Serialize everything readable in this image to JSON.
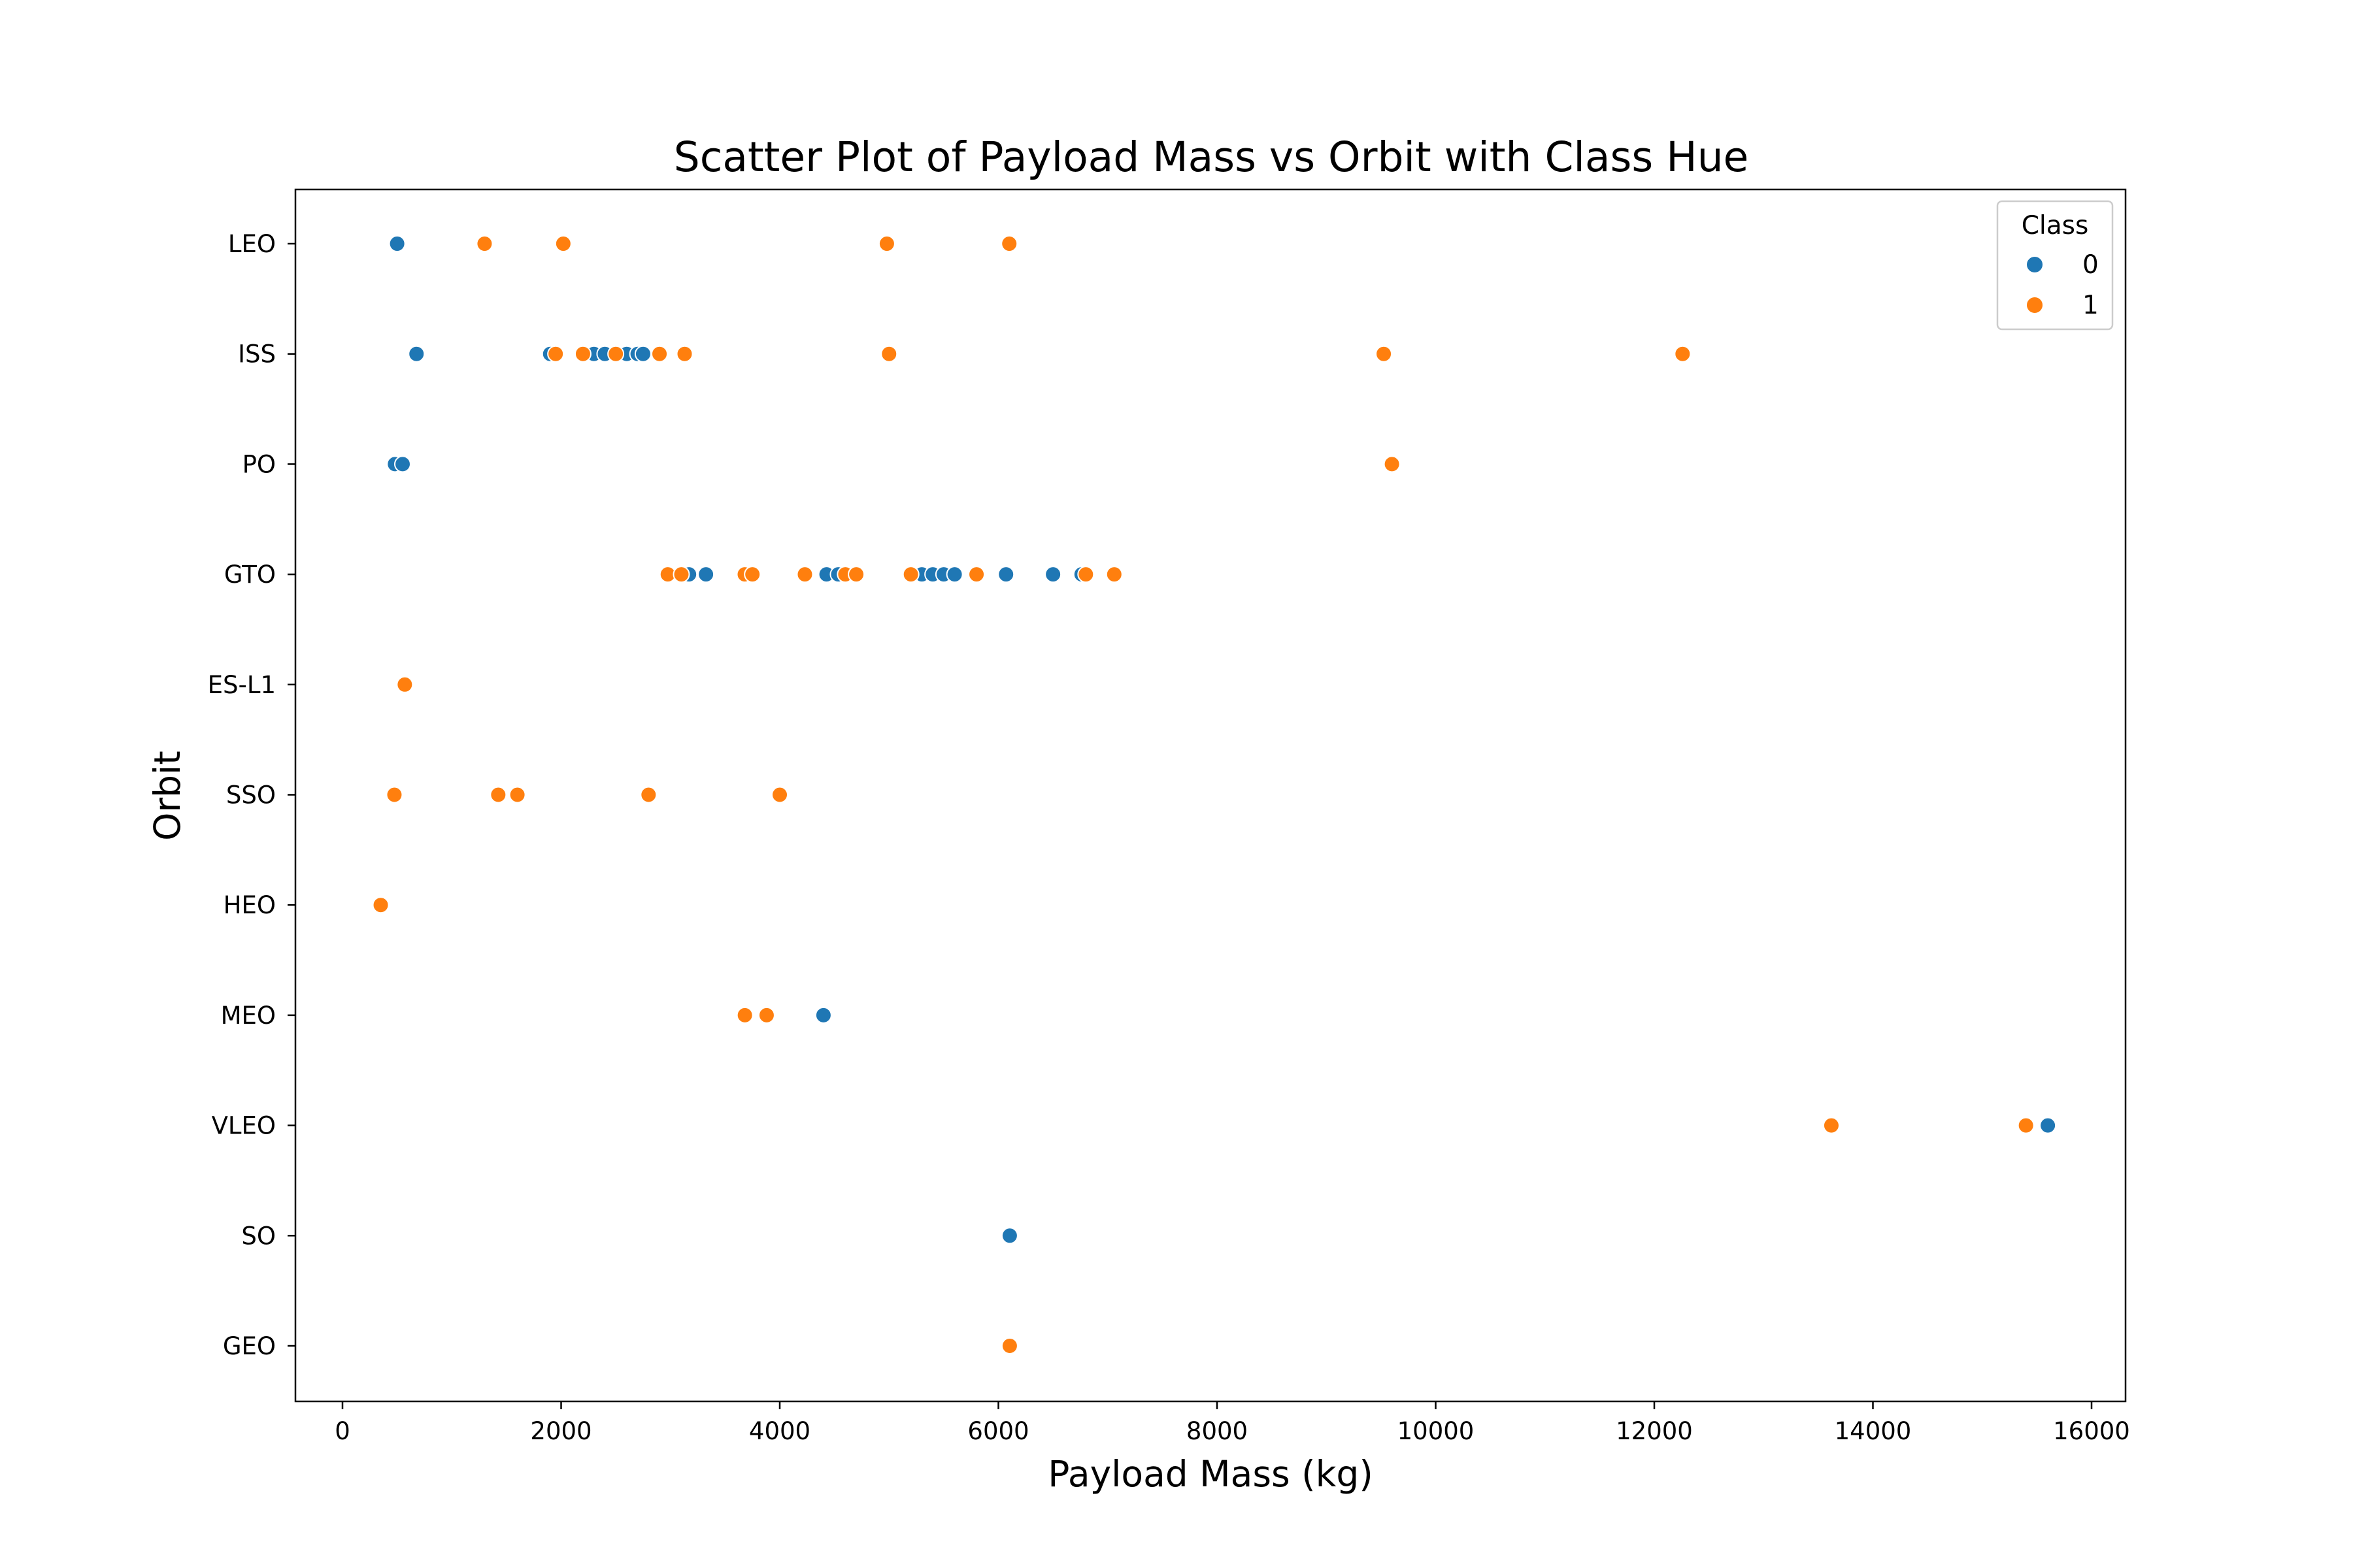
{
  "chart_data": {
    "type": "scatter",
    "title": "Scatter Plot of Payload Mass vs Orbit with Class Hue",
    "xlabel": "Payload Mass (kg)",
    "ylabel": "Orbit",
    "xlim": [
      -500,
      16350
    ],
    "xticks": [
      0,
      2000,
      4000,
      6000,
      8000,
      10000,
      12000,
      14000,
      16000
    ],
    "xtick_labels": [
      "0",
      "2000",
      "4000",
      "6000",
      "8000",
      "10000",
      "12000",
      "14000",
      "16000"
    ],
    "categories": [
      "LEO",
      "ISS",
      "PO",
      "GTO",
      "ES-L1",
      "SSO",
      "HEO",
      "MEO",
      "VLEO",
      "SO",
      "GEO"
    ],
    "grid": false,
    "legend": {
      "title": "Class",
      "placement": "top-right"
    },
    "series": [
      {
        "name": "0",
        "color": "#1f77b4",
        "points": [
          {
            "x": 500,
            "y": "LEO"
          },
          {
            "x": 677,
            "y": "ISS"
          },
          {
            "x": 1900,
            "y": "ISS"
          },
          {
            "x": 2300,
            "y": "ISS"
          },
          {
            "x": 2400,
            "y": "ISS"
          },
          {
            "x": 2600,
            "y": "ISS"
          },
          {
            "x": 2700,
            "y": "ISS"
          },
          {
            "x": 2750,
            "y": "ISS"
          },
          {
            "x": 480,
            "y": "PO"
          },
          {
            "x": 550,
            "y": "PO"
          },
          {
            "x": 3170,
            "y": "GTO"
          },
          {
            "x": 3325,
            "y": "GTO"
          },
          {
            "x": 4428,
            "y": "GTO"
          },
          {
            "x": 4535,
            "y": "GTO"
          },
          {
            "x": 5300,
            "y": "GTO"
          },
          {
            "x": 5400,
            "y": "GTO"
          },
          {
            "x": 5500,
            "y": "GTO"
          },
          {
            "x": 5600,
            "y": "GTO"
          },
          {
            "x": 6070,
            "y": "GTO"
          },
          {
            "x": 6500,
            "y": "GTO"
          },
          {
            "x": 6761,
            "y": "GTO"
          },
          {
            "x": 4400,
            "y": "MEO"
          },
          {
            "x": 15600,
            "y": "VLEO"
          },
          {
            "x": 6104,
            "y": "SO"
          }
        ]
      },
      {
        "name": "1",
        "color": "#ff7f0e",
        "points": [
          {
            "x": 1300,
            "y": "LEO"
          },
          {
            "x": 2020,
            "y": "LEO"
          },
          {
            "x": 4980,
            "y": "LEO"
          },
          {
            "x": 6100,
            "y": "LEO"
          },
          {
            "x": 1950,
            "y": "ISS"
          },
          {
            "x": 2200,
            "y": "ISS"
          },
          {
            "x": 2500,
            "y": "ISS"
          },
          {
            "x": 2900,
            "y": "ISS"
          },
          {
            "x": 3130,
            "y": "ISS"
          },
          {
            "x": 5000,
            "y": "ISS"
          },
          {
            "x": 9525,
            "y": "ISS"
          },
          {
            "x": 12259,
            "y": "ISS"
          },
          {
            "x": 9600,
            "y": "PO"
          },
          {
            "x": 2976,
            "y": "GTO"
          },
          {
            "x": 3100,
            "y": "GTO"
          },
          {
            "x": 3680,
            "y": "GTO"
          },
          {
            "x": 3750,
            "y": "GTO"
          },
          {
            "x": 4230,
            "y": "GTO"
          },
          {
            "x": 4600,
            "y": "GTO"
          },
          {
            "x": 4700,
            "y": "GTO"
          },
          {
            "x": 5200,
            "y": "GTO"
          },
          {
            "x": 5800,
            "y": "GTO"
          },
          {
            "x": 6800,
            "y": "GTO"
          },
          {
            "x": 7060,
            "y": "GTO"
          },
          {
            "x": 570,
            "y": "ES-L1"
          },
          {
            "x": 475,
            "y": "SSO"
          },
          {
            "x": 1425,
            "y": "SSO"
          },
          {
            "x": 1600,
            "y": "SSO"
          },
          {
            "x": 2800,
            "y": "SSO"
          },
          {
            "x": 4000,
            "y": "SSO"
          },
          {
            "x": 350,
            "y": "HEO"
          },
          {
            "x": 3681,
            "y": "MEO"
          },
          {
            "x": 3880,
            "y": "MEO"
          },
          {
            "x": 13620,
            "y": "VLEO"
          },
          {
            "x": 15400,
            "y": "VLEO"
          },
          {
            "x": 6104,
            "y": "GEO"
          }
        ]
      }
    ]
  }
}
